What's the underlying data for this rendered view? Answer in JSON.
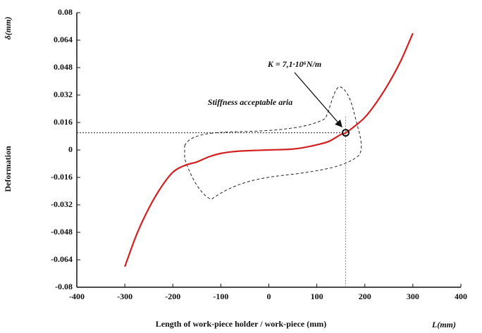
{
  "chart_data": {
    "type": "line",
    "x_label": "Length of work-piece holder / work-piece (mm)",
    "x_unit": "L(mm)",
    "y_label": "Deformation",
    "y_unit": "δ(mm)",
    "annotations": [
      "K = 7,1·10⁶N/m",
      "Stiffness acceptable aria"
    ],
    "x": [
      -300,
      -275,
      -250,
      -225,
      -200,
      -175,
      -150,
      -125,
      -100,
      -75,
      -50,
      0,
      25,
      50,
      75,
      100,
      125,
      150,
      160,
      175,
      200,
      225,
      250,
      275,
      300
    ],
    "series": [
      {
        "color": "#d42020",
        "values": [
          -0.068,
          -0.049,
          -0.034,
          -0.022,
          -0.013,
          -0.009,
          -0.007,
          -0.004,
          -0.002,
          -0.001,
          -0.0005,
          0,
          0.0002,
          0.0005,
          0.0015,
          0.003,
          0.005,
          0.009,
          0.01,
          0.013,
          0.019,
          0.028,
          0.039,
          0.052,
          0.068
        ]
      }
    ],
    "marker": {
      "x": 160,
      "y": 0.01
    },
    "xlim": [
      -400,
      400
    ],
    "xticks": [
      -400,
      -300,
      -200,
      -100,
      0,
      100,
      200,
      300,
      400
    ],
    "ylim": [
      -0.08,
      0.08
    ],
    "yticks": [
      -0.08,
      -0.064,
      -0.048,
      -0.032,
      -0.016,
      0,
      0.016,
      0.032,
      0.048,
      0.064,
      0.08
    ]
  }
}
